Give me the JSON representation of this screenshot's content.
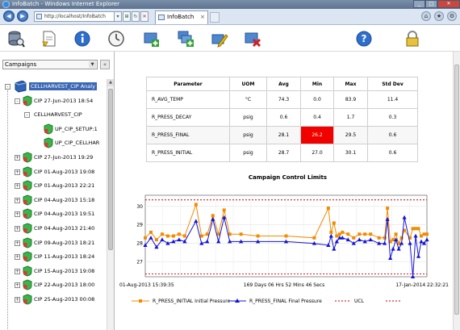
{
  "window": {
    "title": "InfoBatch - Windows Internet Explorer"
  },
  "browser": {
    "address": "http://localhost/InfoBatch",
    "tab_label": "InfoBatch"
  },
  "app_toolbar": {
    "buttons": [
      {
        "name": "database-search-icon"
      },
      {
        "name": "report-icon"
      },
      {
        "name": "info-icon"
      },
      {
        "name": "clock-icon"
      },
      {
        "name": "add-icon"
      },
      {
        "name": "add-multiple-icon"
      },
      {
        "name": "edit-icon"
      },
      {
        "name": "delete-icon"
      },
      {
        "name": "help-icon"
      },
      {
        "name": "lock-icon"
      }
    ]
  },
  "sidebar": {
    "select_value": "Campaigns",
    "tree": [
      {
        "label": "CELLHARVEST_CIP Analy",
        "level": 0,
        "expander": "-",
        "selected": true,
        "icon": "database"
      },
      {
        "label": "CIP 27-Jun-2013 18:54",
        "level": 1,
        "expander": "-",
        "icon": "shield"
      },
      {
        "label": "CELLHARVEST_CIP",
        "level": 2,
        "expander": "-",
        "icon": ""
      },
      {
        "label": "UP_CIP_SETUP:1",
        "level": 3,
        "expander": "",
        "icon": "shield"
      },
      {
        "label": "UP_CIP_CELLHAR",
        "level": 3,
        "expander": "",
        "icon": "shield"
      },
      {
        "label": "CIP 27-Jun-2013 19:29",
        "level": 1,
        "expander": "+",
        "icon": "shield"
      },
      {
        "label": "CIP 01-Aug-2013 19:08",
        "level": 1,
        "expander": "+",
        "icon": "shield"
      },
      {
        "label": "CIP 01-Aug-2013 22:21",
        "level": 1,
        "expander": "+",
        "icon": "shield"
      },
      {
        "label": "CIP 04-Aug-2013 15:18",
        "level": 1,
        "expander": "+",
        "icon": "shield"
      },
      {
        "label": "CIP 04-Aug-2013 19:51",
        "level": 1,
        "expander": "+",
        "icon": "shield"
      },
      {
        "label": "CIP 04-Aug-2013 21:40",
        "level": 1,
        "expander": "+",
        "icon": "shield"
      },
      {
        "label": "CIP 09-Aug-2013 18:21",
        "level": 1,
        "expander": "+",
        "icon": "shield"
      },
      {
        "label": "CIP 11-Aug-2013 18:24",
        "level": 1,
        "expander": "+",
        "icon": "shield"
      },
      {
        "label": "CIP 15-Aug-2013 19:08",
        "level": 1,
        "expander": "+",
        "icon": "shield"
      },
      {
        "label": "CIP 22-Aug-2013 18:00",
        "level": 1,
        "expander": "+",
        "icon": "shield"
      },
      {
        "label": "CIP 25-Aug-2013 00:08",
        "level": 1,
        "expander": "+",
        "icon": "shield"
      }
    ]
  },
  "stats_table": {
    "headers": [
      "Parameter",
      "UOM",
      "Avg",
      "Min",
      "Max",
      "Std Dev"
    ],
    "rows": [
      {
        "cells": [
          "R_AVG_TEMP",
          "°C",
          "74.3",
          "0.0",
          "83.9",
          "11.4"
        ],
        "highlight_col": -1
      },
      {
        "cells": [
          "R_PRESS_DECAY",
          "psig",
          "0.6",
          "0.4",
          "1.7",
          "0.3"
        ],
        "highlight_col": -1
      },
      {
        "cells": [
          "R_PRESS_FINAL",
          "psig",
          "28.1",
          "26.2",
          "29.5",
          "0.6"
        ],
        "highlight_col": 3
      },
      {
        "cells": [
          "R_PRESS_INITIAL",
          "psig",
          "28.7",
          "27.0",
          "30.1",
          "0.6"
        ],
        "highlight_col": -1
      }
    ],
    "highlight_color": "#f10000"
  },
  "chart_data": {
    "type": "line",
    "title": "Campaign Control Limits",
    "x_start_label": "01-Aug-2013 15:39:35",
    "x_mid_label": "169 Days 06 Hrs 52 Mins 46 Secs",
    "x_end_label": "17-Jan-2014 22:32:21",
    "yticks": [
      "27",
      "28",
      "29",
      "30"
    ],
    "ylim": [
      26.2,
      30.6
    ],
    "x": [
      0,
      2,
      4,
      6,
      8,
      10,
      12,
      14,
      18,
      20,
      22,
      24,
      26,
      28,
      30,
      34,
      40,
      50,
      60,
      65,
      66,
      67,
      68,
      69,
      70,
      72,
      74,
      76,
      78,
      80,
      83,
      85,
      86,
      87,
      88,
      89,
      90,
      91,
      92,
      94,
      95,
      96,
      97,
      98,
      99,
      100
    ],
    "series": [
      {
        "name": "R_PRESS_INITIAL Initial Pressure",
        "color": "#f08c00",
        "marker": "square",
        "values": [
          28.3,
          28.6,
          28.2,
          28.5,
          28.4,
          28.4,
          28.5,
          28.4,
          30.1,
          28.4,
          28.5,
          29.5,
          28.5,
          29.8,
          28.5,
          28.5,
          28.4,
          28.4,
          28.3,
          29.9,
          28.6,
          29.1,
          28.4,
          28.5,
          28.6,
          28.5,
          28.3,
          28.5,
          28.5,
          28.5,
          28.3,
          28.3,
          29.9,
          28.1,
          28.2,
          28.5,
          28.0,
          28.3,
          28.7,
          28.3,
          28.8,
          28.8,
          28.8,
          28.4,
          28.5,
          28.5
        ]
      },
      {
        "name": "R_PRESS_FINAL Final Pressure",
        "color": "#1414d4",
        "marker": "triangle",
        "values": [
          27.9,
          28.3,
          27.8,
          28.2,
          28.0,
          28.1,
          28.2,
          28.1,
          29.2,
          28.0,
          28.1,
          29.3,
          28.1,
          29.4,
          28.1,
          28.1,
          28.1,
          28.1,
          28.0,
          27.9,
          28.4,
          27.7,
          28.1,
          28.3,
          28.3,
          28.2,
          28.0,
          28.2,
          28.1,
          28.2,
          28.0,
          28.0,
          29.3,
          27.2,
          27.7,
          28.2,
          27.7,
          28.0,
          29.4,
          28.0,
          26.2,
          28.4,
          27.3,
          28.1,
          28.0,
          28.2
        ]
      }
    ],
    "limits": [
      {
        "name": "UCL",
        "value": 30.35,
        "color": "#cc0000"
      },
      {
        "name": "",
        "value": 26.35,
        "color": "#cc0000"
      }
    ],
    "legend": [
      "R_PRESS_INITIAL Initial Pressure",
      "R_PRESS_FINAL Final Pressure",
      "UCL"
    ],
    "legend_position": "bottom",
    "grid": true
  }
}
